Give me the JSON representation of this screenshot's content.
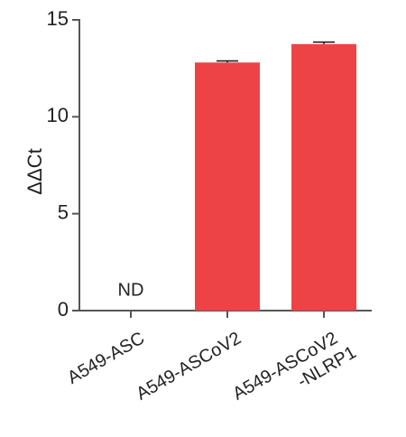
{
  "chart_data": {
    "type": "bar",
    "y_label": "ΔΔCt",
    "categories": [
      "A549-ASC",
      "A549-ASCoV2",
      "A549-ASCoV2\n-NLRP1"
    ],
    "values": [
      null,
      12.8,
      13.75
    ],
    "errors": [
      null,
      0.08,
      0.1
    ],
    "annotations": [
      "ND"
    ],
    "color": "#ee4346",
    "ylim": [
      0,
      15
    ],
    "yticks": [
      0,
      5,
      10,
      15
    ],
    "grid": false
  }
}
